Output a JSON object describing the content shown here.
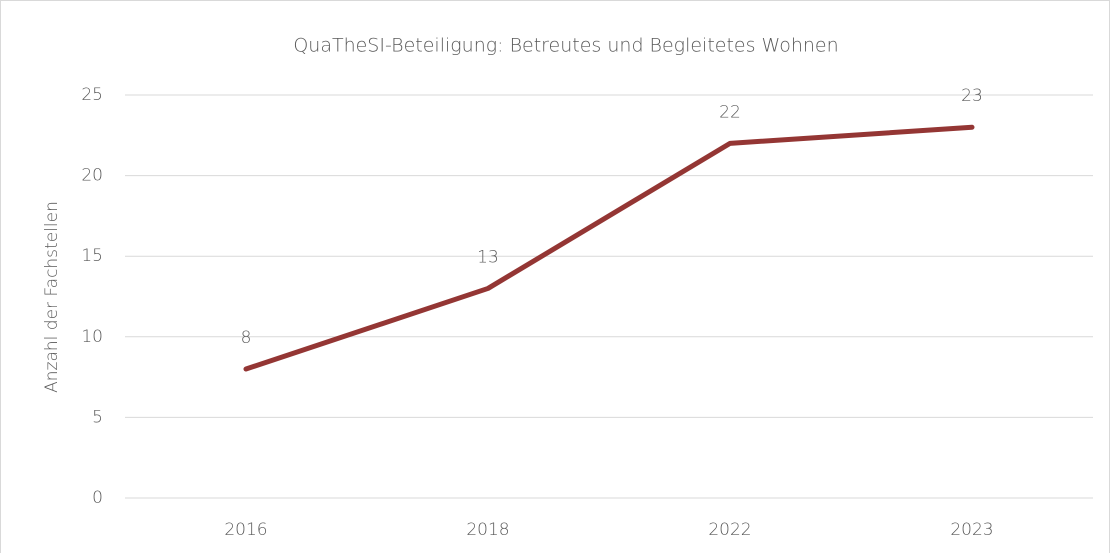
{
  "chart_data": {
    "type": "line",
    "title": "QuaTheSI-Beteiligung: Betreutes und Begleitetes Wohnen",
    "y_label": "Anzahl der Fachstellen",
    "categories": [
      "2016",
      "2018",
      "2022",
      "2023"
    ],
    "series": [
      {
        "name": "Anzahl der Fachstellen",
        "color": "#943634",
        "values": [
          8,
          13,
          22,
          23
        ]
      }
    ],
    "ylim": [
      0,
      25
    ],
    "yticks": [
      0,
      5,
      10,
      15,
      20,
      25
    ],
    "grid": true
  }
}
